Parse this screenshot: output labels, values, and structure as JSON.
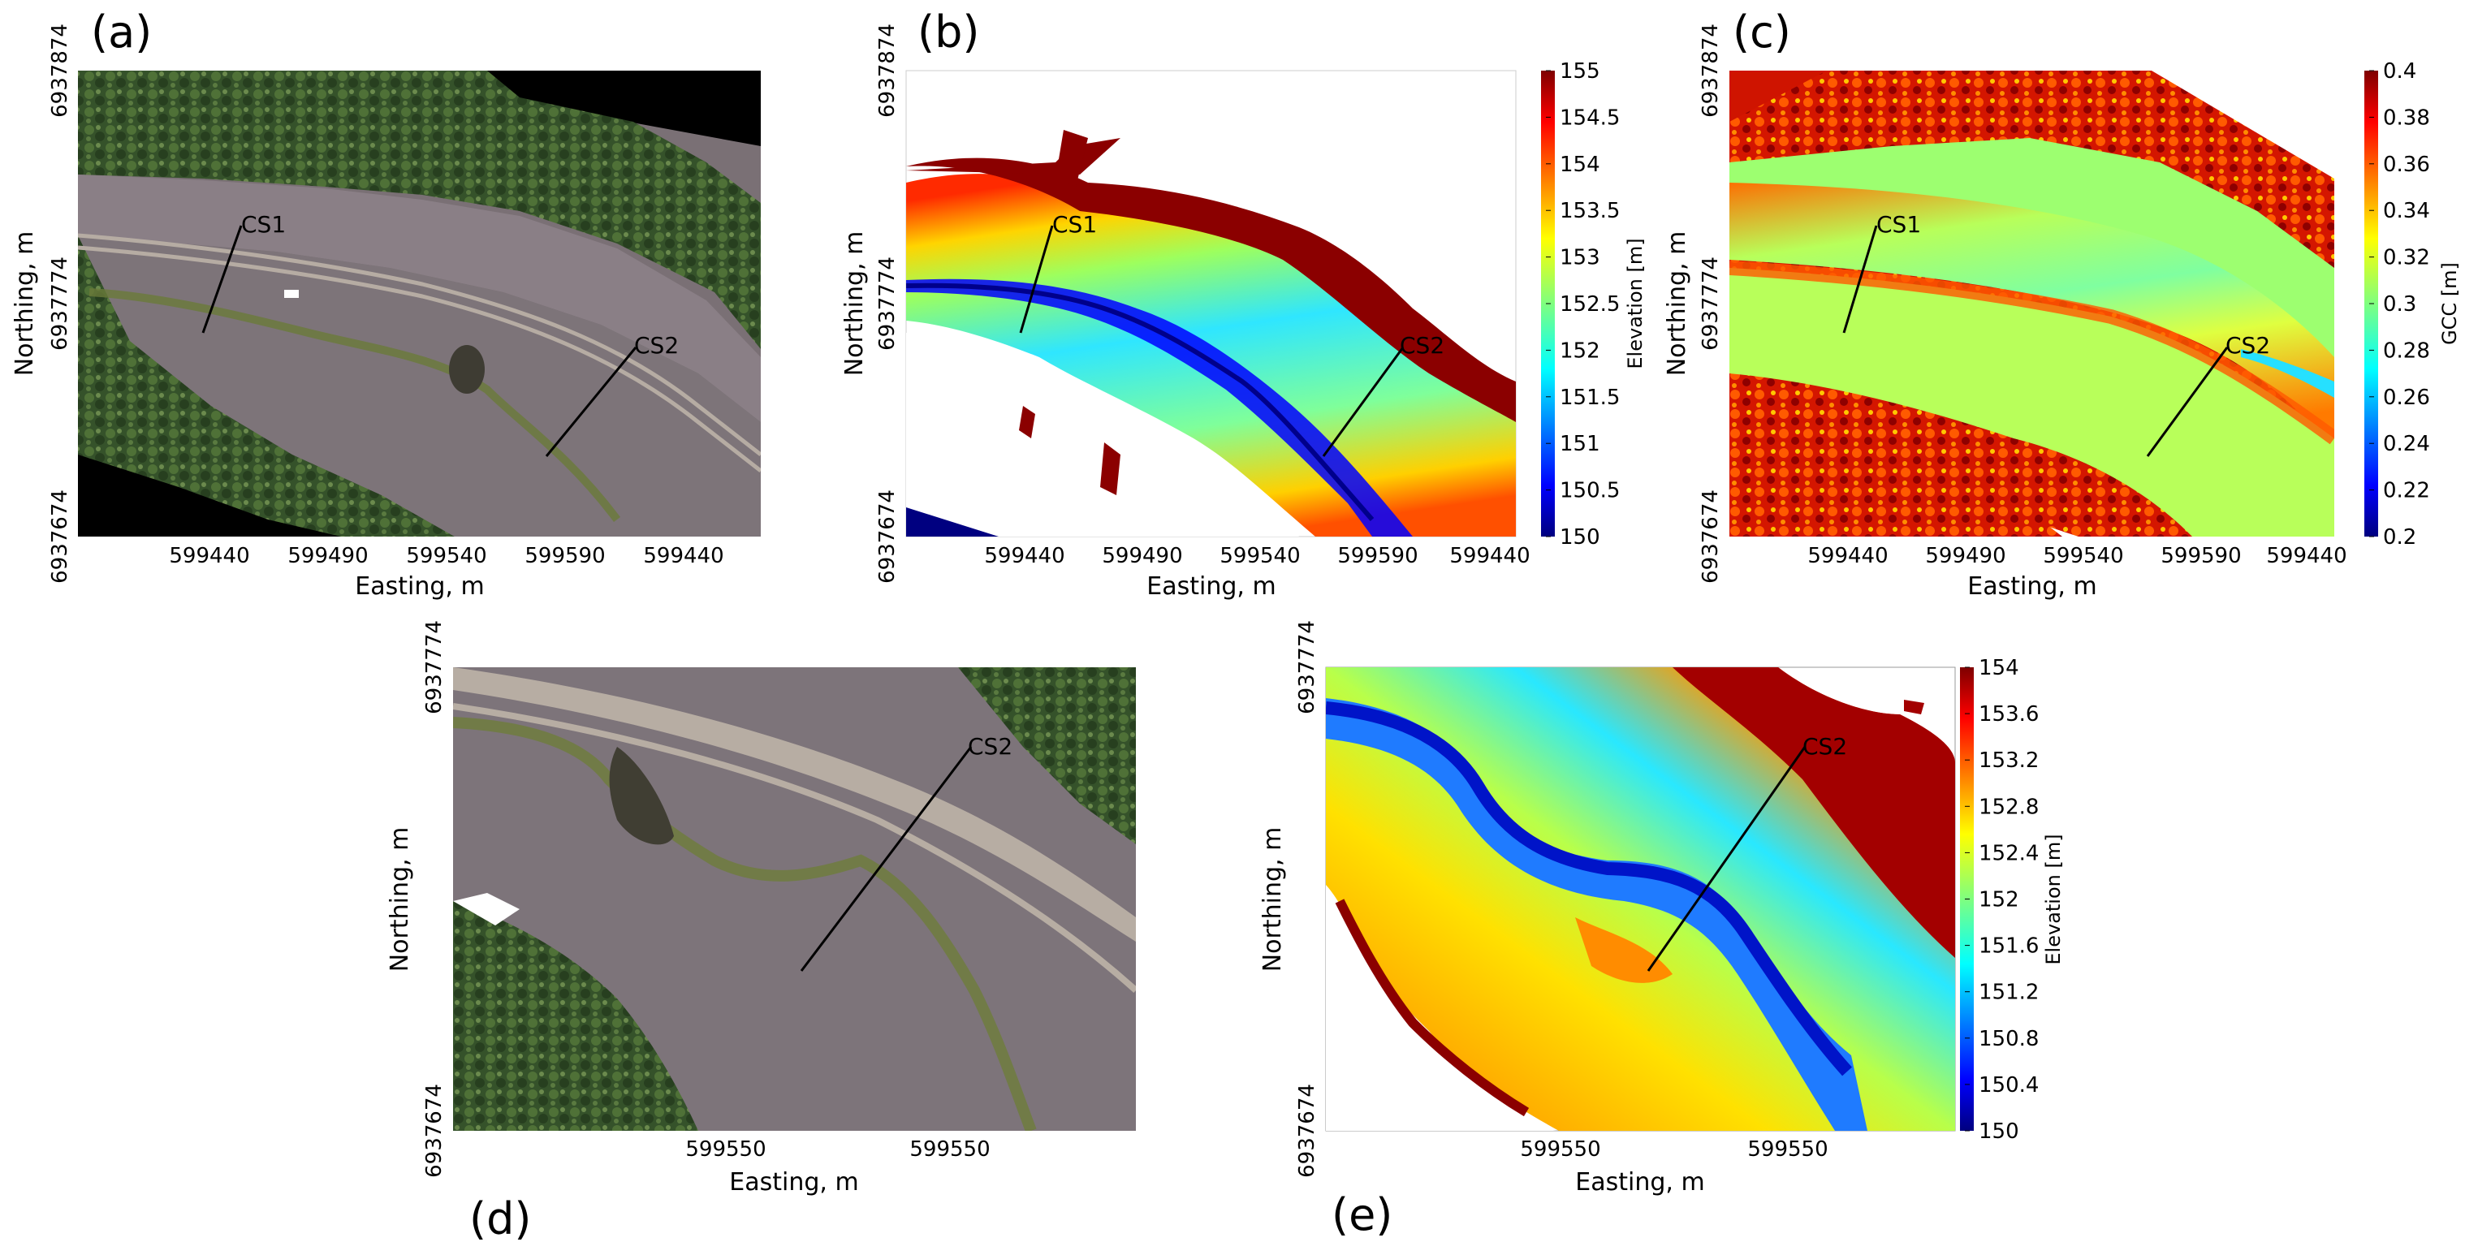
{
  "panels": {
    "a": {
      "label": "(a)",
      "type": "orthophoto",
      "x_ticks": [
        "599440",
        "599490",
        "599540",
        "599590",
        "599440"
      ],
      "y_ticks": [
        "6937874",
        "6937774",
        "6937674"
      ],
      "xlabel": "Easting, m",
      "ylabel": "Northing, m",
      "cross_sections": [
        "CS1",
        "CS2"
      ]
    },
    "b": {
      "label": "(b)",
      "type": "elevation-map",
      "x_ticks": [
        "599440",
        "599490",
        "599540",
        "599590",
        "599440"
      ],
      "y_ticks": [
        "6937874",
        "6937774",
        "6937674"
      ],
      "xlabel": "Easting, m",
      "ylabel": "Northing, m",
      "cross_sections": [
        "CS1",
        "CS2"
      ],
      "colorbar": {
        "label": "Elevation [m]",
        "ticks": [
          "155",
          "154.5",
          "154",
          "153.5",
          "153",
          "152.5",
          "152",
          "151.5",
          "151",
          "150.5",
          "150"
        ]
      }
    },
    "c": {
      "label": "(c)",
      "type": "gcc-map",
      "x_ticks": [
        "599440",
        "599490",
        "599540",
        "599590",
        "599440"
      ],
      "y_ticks": [
        "6937874",
        "6937774",
        "6937674"
      ],
      "xlabel": "Easting, m",
      "ylabel": "Northing, m",
      "cross_sections": [
        "CS1",
        "CS2"
      ],
      "colorbar": {
        "label": "GCC [m]",
        "ticks": [
          "0.4",
          "0.38",
          "0.36",
          "0.34",
          "0.32",
          "0.3",
          "0.28",
          "0.26",
          "0.24",
          "0.22",
          "0.2"
        ]
      }
    },
    "d": {
      "label": "(d)",
      "type": "orthophoto-zoom",
      "x_ticks": [
        "599550",
        "599550"
      ],
      "y_ticks": [
        "6937774",
        "6937674"
      ],
      "xlabel": "Easting, m",
      "ylabel": "Northing, m",
      "cross_sections": [
        "CS2"
      ]
    },
    "e": {
      "label": "(e)",
      "type": "elevation-zoom",
      "x_ticks": [
        "599550",
        "599550"
      ],
      "y_ticks": [
        "6937774",
        "6937674"
      ],
      "xlabel": "Easting, m",
      "ylabel": "Northing, m",
      "cross_sections": [
        "CS2"
      ],
      "colorbar": {
        "label": "Elevation [m]",
        "ticks": [
          "154",
          "153.6",
          "153.2",
          "152.8",
          "152.4",
          "152",
          "151.6",
          "151.2",
          "150.8",
          "150.4",
          "150"
        ]
      }
    }
  },
  "colors": {
    "jet": [
      "#00007f",
      "#0000ff",
      "#007fff",
      "#00ffff",
      "#7fff7f",
      "#ffff00",
      "#ff7f00",
      "#ff0000",
      "#7f0000"
    ],
    "land": "#7e7478",
    "forest": "#2f4a25",
    "nodata": "#000000"
  }
}
